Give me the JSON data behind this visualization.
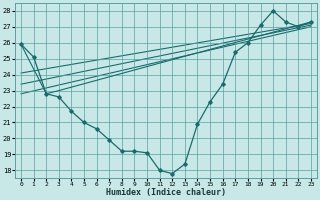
{
  "xlabel": "Humidex (Indice chaleur)",
  "background_color": "#c8e8e8",
  "grid_color": "#5a9f9f",
  "line_color": "#1a6b6b",
  "xlim": [
    -0.5,
    23.5
  ],
  "ylim": [
    17.5,
    28.5
  ],
  "xticks": [
    0,
    1,
    2,
    3,
    4,
    5,
    6,
    7,
    8,
    9,
    10,
    11,
    12,
    13,
    14,
    15,
    16,
    17,
    18,
    19,
    20,
    21,
    22,
    23
  ],
  "yticks": [
    18,
    19,
    20,
    21,
    22,
    23,
    24,
    25,
    26,
    27,
    28
  ],
  "main_x": [
    0,
    1,
    2,
    3,
    4,
    5,
    6,
    7,
    8,
    9,
    10,
    11,
    12,
    13,
    14,
    15,
    16,
    17,
    18,
    19,
    20,
    21,
    22,
    23
  ],
  "main_y": [
    25.9,
    25.1,
    22.8,
    22.6,
    21.7,
    21.0,
    20.6,
    19.9,
    19.2,
    19.2,
    19.1,
    18.0,
    17.8,
    18.4,
    20.9,
    22.3,
    23.4,
    25.4,
    26.0,
    27.1,
    28.0,
    27.3,
    27.0,
    27.3
  ],
  "line2_x": [
    0,
    2,
    3,
    23
  ],
  "line2_y": [
    25.9,
    22.8,
    23.0,
    27.3
  ],
  "line3_x": [
    0,
    23
  ],
  "line3_y": [
    22.8,
    27.0
  ],
  "line4_x": [
    0,
    23
  ],
  "line4_y": [
    23.4,
    27.1
  ],
  "line5_x": [
    0,
    23
  ],
  "line5_y": [
    24.1,
    27.2
  ]
}
